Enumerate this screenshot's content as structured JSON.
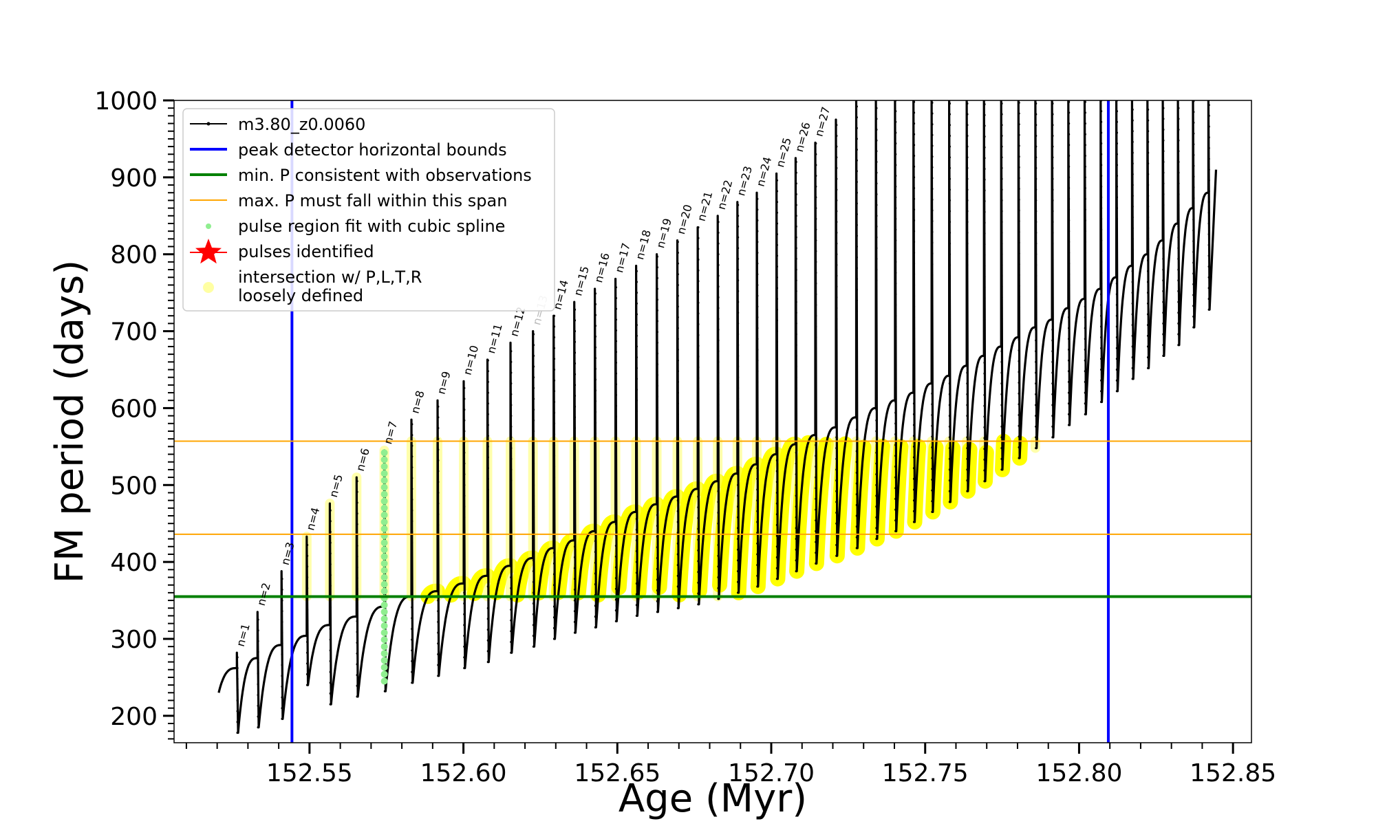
{
  "chart_data": {
    "type": "line",
    "title": "",
    "xlabel": "Age (Myr)",
    "ylabel": "FM period (days)",
    "xlim": [
      152.506,
      152.856
    ],
    "ylim": [
      165,
      1000
    ],
    "x_ticks": [
      152.55,
      152.6,
      152.65,
      152.7,
      152.75,
      152.8,
      152.85
    ],
    "x_tick_labels": [
      "152.55",
      "152.60",
      "152.65",
      "152.70",
      "152.75",
      "152.80",
      "152.85"
    ],
    "y_ticks": [
      200,
      300,
      400,
      500,
      600,
      700,
      800,
      900,
      1000
    ],
    "y_tick_labels": [
      "200",
      "300",
      "400",
      "500",
      "600",
      "700",
      "800",
      "900",
      "1000"
    ],
    "grid": false,
    "legend_position": "top-left",
    "legend": [
      {
        "label": "m3.80_z0.0060",
        "color": "#000000",
        "style": "line-dot"
      },
      {
        "label": "peak detector horizontal bounds",
        "color": "#0000ff",
        "style": "line"
      },
      {
        "label": "min. P consistent with observations",
        "color": "#008000",
        "style": "line"
      },
      {
        "label": "max. P must fall within this span",
        "color": "#ffa500",
        "style": "thin-line"
      },
      {
        "label": "pulse region fit with cubic spline",
        "color": "#90ee90",
        "style": "dot"
      },
      {
        "label": "pulses identified",
        "color": "#ff0000",
        "style": "star"
      },
      {
        "label": "intersection w/ P,L,T,R",
        "label2": "loosely defined",
        "color": "#ffff66",
        "style": "big-dot"
      }
    ],
    "vertical_bounds": [
      152.5443,
      152.8095
    ],
    "min_period": 355,
    "max_period_span": [
      436,
      557
    ],
    "pulse_series": {
      "name": "m3.80_z0.0060",
      "pulse_ages": [
        152.5264,
        152.5331,
        152.5409,
        152.5491,
        152.5566,
        152.5653,
        152.5743,
        152.5831,
        152.5916,
        152.6001,
        152.6078,
        152.6153,
        152.6226,
        152.6293,
        152.636,
        152.6427,
        152.6494,
        152.6561,
        152.6628,
        152.6695,
        152.6761,
        152.6826,
        152.689,
        152.6953,
        152.7017,
        152.7079,
        152.7143,
        152.721,
        152.7276,
        152.734,
        152.7402,
        152.7462,
        152.7521,
        152.7578,
        152.7635,
        152.7691,
        152.7747,
        152.7803,
        152.7858,
        152.7912,
        152.7965,
        152.8018,
        152.807,
        152.8121,
        152.8172,
        152.8222,
        152.8272,
        152.8321,
        152.837,
        152.842
      ],
      "pre_pulse_period": [
        262,
        275,
        292,
        304,
        318,
        329,
        342,
        355,
        362,
        372,
        382,
        395,
        405,
        418,
        428,
        440,
        452,
        465,
        475,
        485,
        495,
        505,
        515,
        527,
        540,
        553,
        565,
        575,
        588,
        600,
        610,
        620,
        632,
        642,
        655,
        668,
        680,
        692,
        705,
        715,
        730,
        742,
        755,
        770,
        785,
        800,
        818,
        840,
        860,
        880
      ],
      "spike_peak_period": [
        282,
        335,
        388,
        433,
        476,
        510,
        545,
        585,
        610,
        635,
        663,
        685,
        700,
        720,
        738,
        755,
        768,
        785,
        800,
        818,
        835,
        850,
        868,
        880,
        905,
        925,
        945,
        975,
        1000,
        1000,
        1000,
        1000,
        1000,
        1000,
        1000,
        1000,
        1000,
        1000,
        1000,
        1000,
        1000,
        1000,
        1000,
        1000,
        1000,
        1000,
        1000,
        1000,
        1000,
        1000
      ],
      "trough_period": [
        178,
        185,
        196,
        240,
        215,
        225,
        232,
        243,
        252,
        262,
        270,
        282,
        290,
        300,
        308,
        315,
        323,
        330,
        335,
        340,
        345,
        352,
        360,
        368,
        378,
        388,
        398,
        408,
        418,
        430,
        440,
        452,
        465,
        478,
        492,
        505,
        520,
        535,
        548,
        562,
        578,
        592,
        608,
        622,
        638,
        652,
        668,
        682,
        705,
        728
      ]
    },
    "pulse_labels": [
      "n=1",
      "n=2",
      "n=3",
      "n=4",
      "n=5",
      "n=6",
      "n=7",
      "n=8",
      "n=9",
      "n=10",
      "n=11",
      "n=12",
      "n=13",
      "n=14",
      "n=15",
      "n=16",
      "n=17",
      "n=18",
      "n=19",
      "n=20",
      "n=21",
      "n=22",
      "n=23",
      "n=24",
      "n=25",
      "n=26",
      "n=27"
    ],
    "faded_labels": [
      "n=13"
    ]
  }
}
